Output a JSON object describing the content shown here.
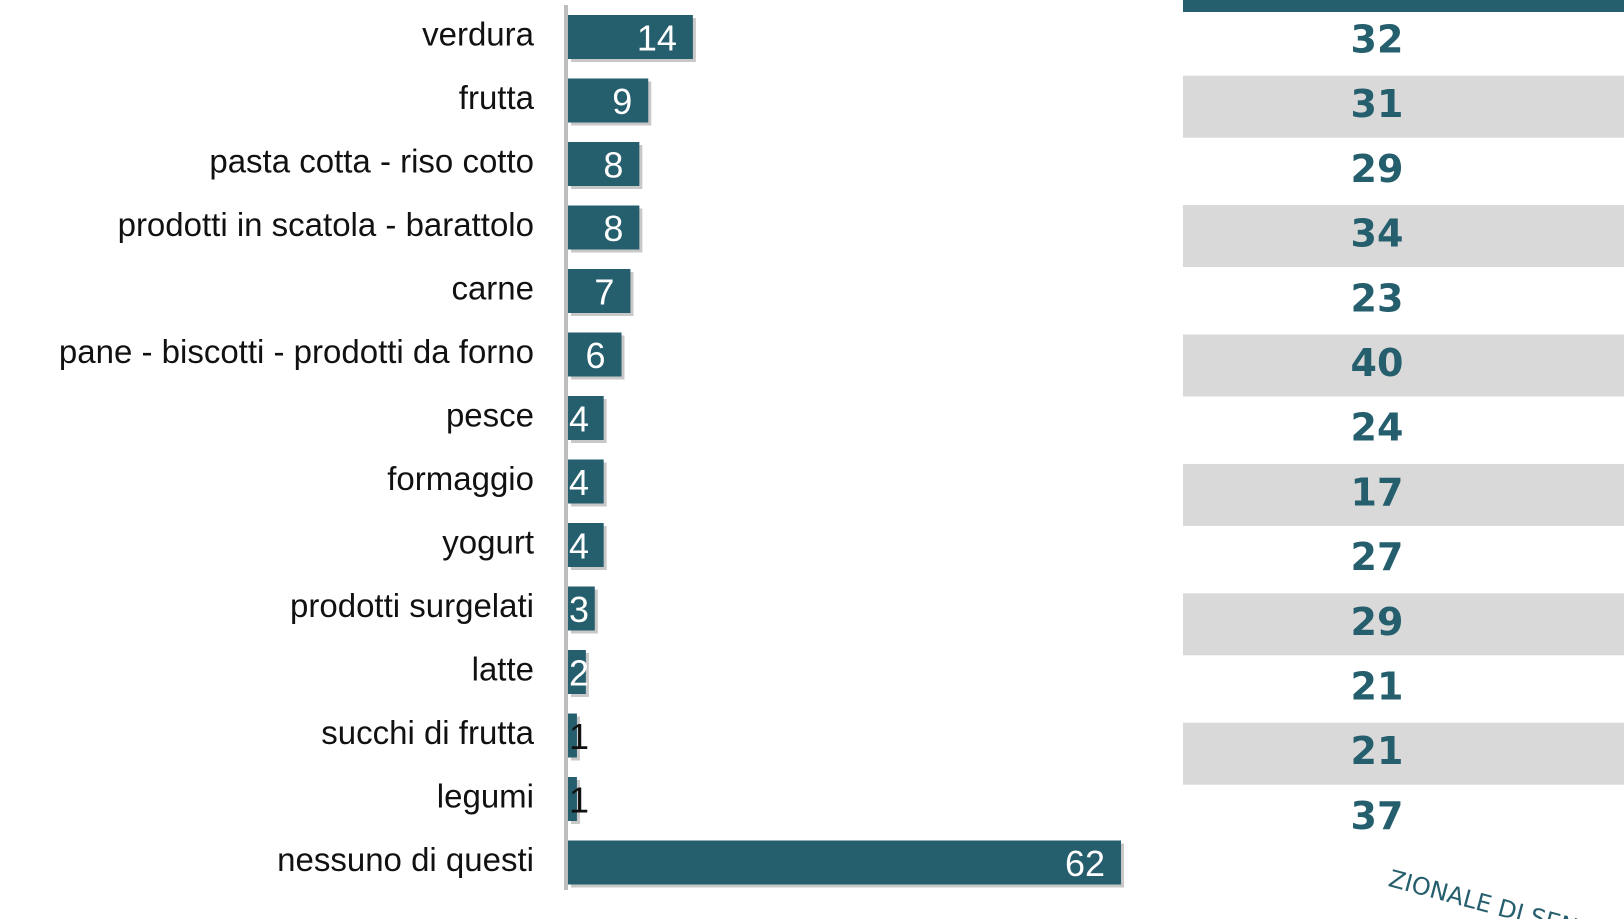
{
  "chart_data": {
    "type": "bar",
    "categories": [
      "verdura",
      "frutta",
      "pasta cotta - riso cotto",
      "prodotti in scatola - barattolo",
      "carne",
      "pane - biscotti - prodotti da forno",
      "pesce",
      "formaggio",
      "yogurt",
      "prodotti surgelati",
      "latte",
      "succhi di frutta",
      "legumi",
      "nessuno di questi"
    ],
    "values": [
      14,
      9,
      8,
      8,
      7,
      6,
      4,
      4,
      4,
      3,
      2,
      1,
      1,
      62
    ],
    "color": "#255e6d"
  },
  "table": {
    "rows": [
      32,
      31,
      29,
      34,
      23,
      40,
      24,
      17,
      27,
      29,
      21,
      21,
      37
    ]
  },
  "stamp": "ZIONALE DI SENSI"
}
